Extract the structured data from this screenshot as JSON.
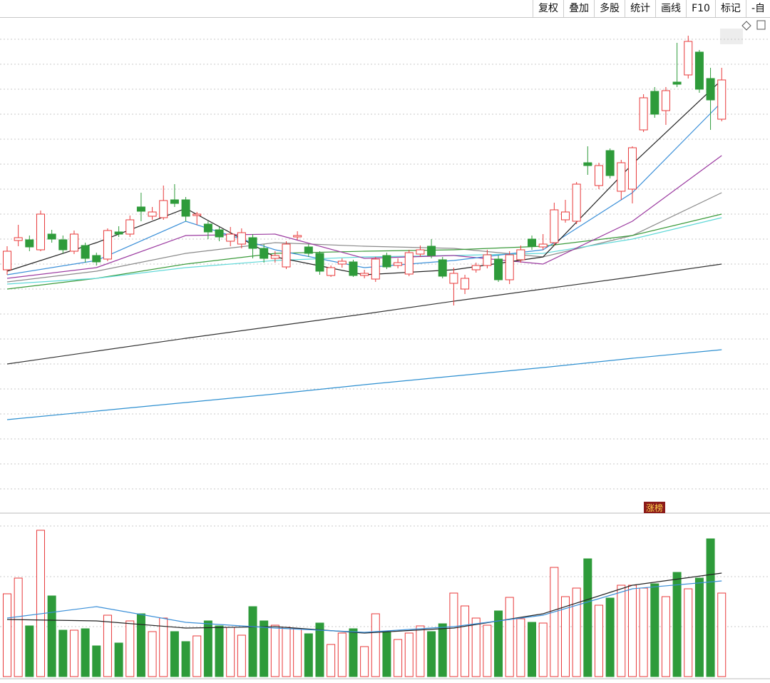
{
  "toolbar": [
    "复权",
    "叠加",
    "多股",
    "统计",
    "画线",
    "F10",
    "标记",
    "-自"
  ],
  "badge": "涨榜",
  "chart_data": {
    "type": "candlestick",
    "up_color": "#e8393a",
    "down_color": "#2e9b3a",
    "ylim": [
      0,
      695
    ],
    "open": [
      342,
      383,
      384,
      370,
      392,
      384,
      368,
      376,
      362,
      357,
      395,
      392,
      430,
      417,
      415,
      440,
      440,
      418,
      406,
      398,
      382,
      378,
      387,
      372,
      358,
      346,
      388,
      374,
      365,
      334,
      350,
      353,
      334,
      329,
      362,
      348,
      336,
      364,
      375,
      356,
      323,
      315,
      342,
      348,
      357,
      328,
      356,
      385,
      374,
      380,
      412,
      410,
      492,
      460,
      509,
      452,
      455,
      538,
      592,
      565,
      605,
      615,
      647,
      610,
      553
    ],
    "high": [
      375,
      405,
      390,
      425,
      398,
      390,
      397,
      380,
      366,
      400,
      403,
      418,
      450,
      430,
      460,
      462,
      444,
      423,
      410,
      402,
      402,
      400,
      392,
      378,
      368,
      382,
      396,
      378,
      368,
      348,
      358,
      356,
      342,
      360,
      366,
      358,
      370,
      376,
      385,
      360,
      345,
      335,
      352,
      370,
      362,
      368,
      376,
      390,
      392,
      436,
      440,
      465,
      515,
      492,
      512,
      496,
      515,
      588,
      598,
      598,
      660,
      670,
      650,
      625,
      625
    ],
    "low": [
      335,
      375,
      368,
      368,
      380,
      365,
      364,
      352,
      348,
      354,
      388,
      388,
      410,
      412,
      412,
      430,
      410,
      405,
      385,
      382,
      375,
      372,
      358,
      352,
      352,
      343,
      384,
      360,
      335,
      332,
      345,
      332,
      330,
      325,
      343,
      344,
      333,
      360,
      358,
      330,
      292,
      308,
      338,
      344,
      325,
      322,
      352,
      370,
      370,
      376,
      408,
      406,
      475,
      455,
      470,
      440,
      435,
      535,
      555,
      545,
      598,
      610,
      590,
      538,
      550
    ],
    "close": [
      368,
      387,
      374,
      420,
      385,
      370,
      392,
      358,
      353,
      397,
      392,
      412,
      424,
      423,
      439,
      435,
      417,
      420,
      395,
      388,
      392,
      394,
      372,
      358,
      362,
      378,
      390,
      365,
      340,
      345,
      354,
      334,
      337,
      357,
      346,
      352,
      366,
      370,
      362,
      333,
      337,
      330,
      348,
      363,
      328,
      363,
      370,
      375,
      378,
      426,
      423,
      462,
      488,
      488,
      474,
      492,
      513,
      583,
      560,
      593,
      602,
      662,
      595,
      580,
      608
    ],
    "ma_x": [
      0,
      8,
      16,
      24,
      32,
      40,
      48,
      56,
      64
    ],
    "ma": [
      {
        "color": "#8a8a8a",
        "values": [
          325,
          340,
          365,
          380,
          375,
          372,
          360,
          390,
          450
        ]
      },
      {
        "color": "#3a9a3a",
        "values": [
          315,
          330,
          350,
          365,
          368,
          370,
          375,
          390,
          420
        ]
      },
      {
        "color": "#5fd8d8",
        "values": [
          322,
          330,
          345,
          355,
          360,
          362,
          365,
          385,
          415
        ]
      },
      {
        "color": "#9b3aa0",
        "values": [
          330,
          345,
          390,
          392,
          358,
          362,
          350,
          410,
          502
        ]
      },
      {
        "color": "#3a8fd8",
        "values": [
          335,
          355,
          410,
          370,
          345,
          355,
          370,
          450,
          577
        ]
      },
      {
        "color": "#222222",
        "values": [
          340,
          380,
          428,
          360,
          335,
          342,
          360,
          490,
          608
        ]
      },
      {
        "color": "#333333",
        "values": [
          210,
          228,
          246,
          263,
          280,
          298,
          315,
          332,
          350
        ]
      },
      {
        "color": "#2d8fd0",
        "values": [
          132,
          144,
          156,
          168,
          181,
          193,
          205,
          218,
          230
        ]
      }
    ],
    "volume": {
      "ylim": [
        0,
        228
      ],
      "values": [
        116,
        138,
        71,
        205,
        113,
        65,
        65,
        67,
        43,
        86,
        47,
        78,
        88,
        63,
        82,
        63,
        49,
        57,
        78,
        71,
        69,
        58,
        98,
        78,
        72,
        69,
        67,
        60,
        75,
        45,
        61,
        67,
        42,
        88,
        63,
        52,
        61,
        71,
        63,
        74,
        117,
        99,
        82,
        72,
        92,
        111,
        81,
        76,
        75,
        153,
        112,
        124,
        165,
        100,
        110,
        128,
        128,
        124,
        130,
        112,
        146,
        123,
        138,
        193,
        117
      ],
      "ma": [
        {
          "color": "#222222",
          "values": [
            80,
            78,
            68,
            70,
            61,
            68,
            88,
            128,
            145
          ]
        },
        {
          "color": "#3a8fd8",
          "values": [
            82,
            98,
            76,
            68,
            62,
            70,
            86,
            123,
            134
          ]
        }
      ]
    }
  }
}
